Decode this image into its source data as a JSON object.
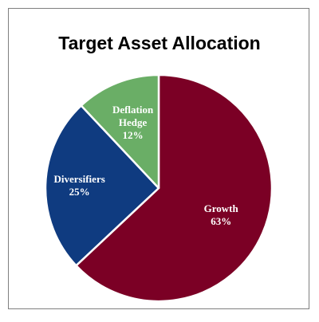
{
  "chart_data": {
    "type": "pie",
    "title": "Target Asset Allocation",
    "slices": [
      {
        "label": "Growth",
        "value": 63,
        "value_label": "63%",
        "color": "#7b0025",
        "label_color": "#ffffff"
      },
      {
        "label": "Diversifiers",
        "value": 25,
        "value_label": "25%",
        "color": "#0f3b80",
        "label_color": "#ffffff"
      },
      {
        "label": "Deflation Hedge",
        "value": 12,
        "value_label": "12%",
        "color": "#6aae66",
        "label_color": "#ffffff"
      }
    ],
    "start": "12 o'clock",
    "direction": "clockwise",
    "legend": "none",
    "border_color": "#7f7f7f"
  }
}
